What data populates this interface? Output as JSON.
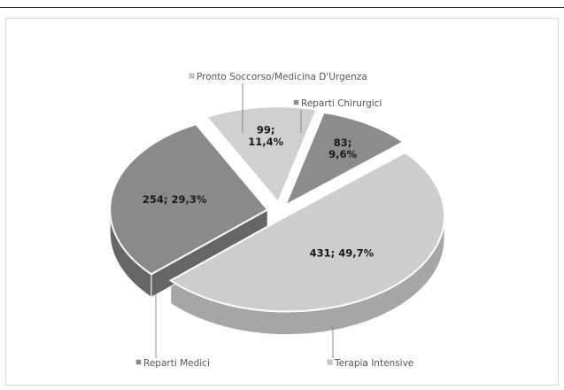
{
  "chart_data": {
    "type": "pie",
    "categories": [
      "Pronto Soccorso/Medicina D'Urgenza",
      "Reparti Chirurgici",
      "Terapia Intensive",
      "Reparti Medici"
    ],
    "values": [
      99,
      83,
      431,
      254
    ],
    "percents": [
      "11,4%",
      "9,6%",
      "49,7%",
      "29,3%"
    ],
    "data_labels": [
      {
        "line1": "99;",
        "line2": "11,4%"
      },
      {
        "line1": "83;",
        "line2": "9,6%"
      },
      {
        "line1": "431; 49,7%",
        "line2": ""
      },
      {
        "line1": "254; 29,3%",
        "line2": ""
      }
    ],
    "colors": [
      "#d0d0d0",
      "#8c8c8c",
      "#cdcdcd",
      "#8a8a8a"
    ],
    "side_colors": [
      "#a8a8a8",
      "#6a6a6a",
      "#a6a6a6",
      "#666666"
    ],
    "style": "3d-exploded",
    "legend": "callout-labels"
  }
}
